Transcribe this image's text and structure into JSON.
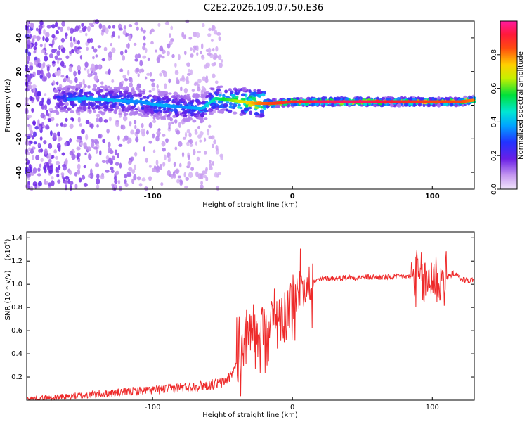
{
  "title": "C2E2.2026.109.07.50.E36",
  "colors": {
    "line": "#ee2a2a",
    "axis": "#000000"
  },
  "chart_data": [
    {
      "type": "heatmap",
      "xlabel": "Height of straight line (km)",
      "ylabel": "Frequency (Hz)",
      "xlim": [
        -190,
        130
      ],
      "ylim": [
        -50,
        50
      ],
      "xticks": [
        -100,
        0,
        100
      ],
      "yticks": [
        -40,
        -20,
        0,
        20,
        40
      ],
      "colorbar": {
        "label": "Normalized spectral amplitude",
        "range": [
          0,
          1
        ],
        "ticks": [
          "0.0",
          "0.2",
          "0.4",
          "0.6",
          "0.8"
        ],
        "tick_values": [
          0,
          0.2,
          0.4,
          0.6,
          0.8
        ]
      },
      "ridge": {
        "description": "dominant frequency ridge",
        "x": [
          -170,
          -150,
          -130,
          -110,
          -95,
          -80,
          -65,
          -55,
          -45,
          -35,
          -25,
          -15,
          0,
          20,
          50,
          80,
          100,
          120,
          130
        ],
        "y": [
          3,
          4,
          3,
          2,
          0,
          -1,
          -2,
          4,
          3,
          2,
          1,
          1,
          2,
          2,
          2,
          2,
          2,
          2,
          3
        ],
        "amplitude": [
          0.3,
          0.4,
          0.4,
          0.35,
          0.4,
          0.35,
          0.4,
          0.5,
          0.6,
          0.7,
          0.8,
          0.85,
          0.9,
          0.95,
          0.95,
          0.9,
          0.85,
          0.85,
          0.8
        ]
      }
    },
    {
      "type": "line",
      "xlabel": "Height of straight line (km)",
      "ylabel": "SNR (10 * v/v)",
      "yscale_label": "(x10",
      "yscale_exp": "4",
      "yscale_close": ")",
      "xlim": [
        -190,
        130
      ],
      "ylim": [
        0,
        1.45
      ],
      "xticks": [
        -100,
        0,
        100
      ],
      "yticks": [
        "0.2",
        "0.4",
        "0.6",
        "0.8",
        "1.0",
        "1.2",
        "1.4"
      ],
      "ytick_values": [
        0.2,
        0.4,
        0.6,
        0.8,
        1.0,
        1.2,
        1.4
      ],
      "series": [
        {
          "name": "SNR",
          "x": [
            -190,
            -170,
            -150,
            -130,
            -110,
            -95,
            -80,
            -70,
            -60,
            -50,
            -45,
            -40,
            -35,
            -30,
            -25,
            -20,
            -15,
            -10,
            -5,
            0,
            5,
            10,
            15,
            20,
            25,
            30,
            40,
            50,
            60,
            70,
            80,
            85,
            90,
            95,
            100,
            105,
            110,
            115,
            120,
            125,
            130
          ],
          "values": [
            0.01,
            0.02,
            0.04,
            0.06,
            0.08,
            0.09,
            0.11,
            0.12,
            0.13,
            0.15,
            0.2,
            0.3,
            0.45,
            0.55,
            0.6,
            0.65,
            0.7,
            0.75,
            0.8,
            0.9,
            0.95,
            1.0,
            1.02,
            1.04,
            1.05,
            1.05,
            1.06,
            1.06,
            1.06,
            1.06,
            1.07,
            1.06,
            1.05,
            1.0,
            1.08,
            1.02,
            1.05,
            1.1,
            1.05,
            1.03,
            1.04
          ]
        }
      ]
    }
  ]
}
